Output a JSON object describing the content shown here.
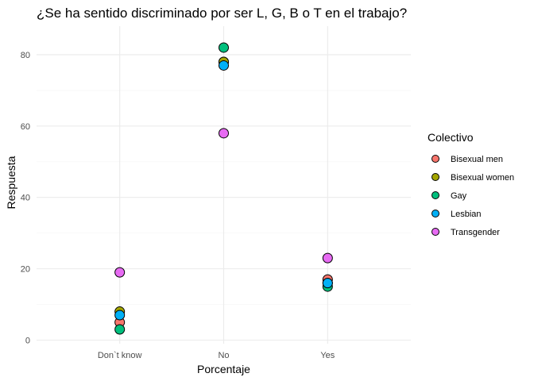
{
  "chart_data": {
    "type": "scatter",
    "title": "¿Se ha sentido discriminado por ser L, G, B o T en el trabajo?",
    "xlabel": "Porcentaje",
    "ylabel": "Respuesta",
    "categories": [
      "Don`t know",
      "No",
      "Yes"
    ],
    "ylim": [
      -1,
      88
    ],
    "yticks": [
      0,
      20,
      40,
      60,
      80
    ],
    "grid": true,
    "legend": {
      "title": "Colectivo",
      "placement": "right"
    },
    "series": [
      {
        "name": "Bisexual men",
        "color": "#F8766D",
        "values": [
          5,
          78,
          17
        ]
      },
      {
        "name": "Bisexual women",
        "color": "#A3A500",
        "values": [
          8,
          78,
          16
        ]
      },
      {
        "name": "Gay",
        "color": "#00BF7D",
        "values": [
          3,
          82,
          15
        ]
      },
      {
        "name": "Lesbian",
        "color": "#00B0F6",
        "values": [
          7,
          77,
          16
        ]
      },
      {
        "name": "Transgender",
        "color": "#E76BF3",
        "values": [
          19,
          58,
          23
        ]
      }
    ]
  }
}
